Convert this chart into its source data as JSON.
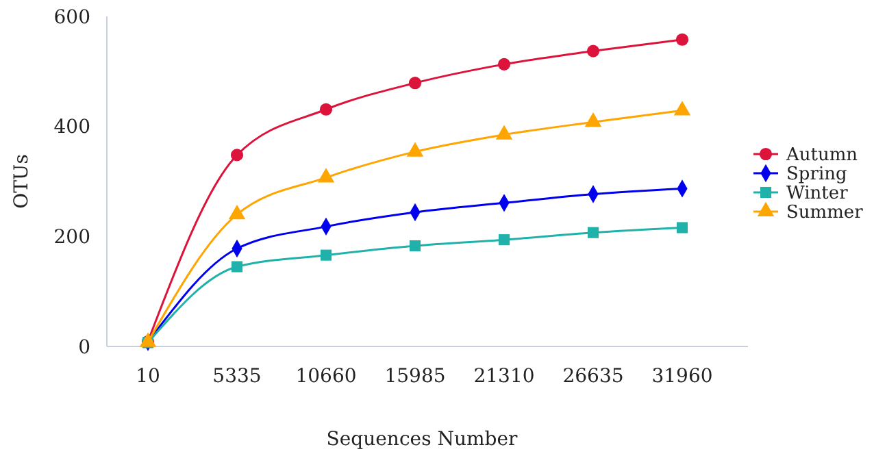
{
  "chart_data": {
    "type": "line",
    "xlabel": "Sequences Number",
    "ylabel": "OTUs",
    "categories": [
      "10",
      "5335",
      "10660",
      "15985",
      "21310",
      "26635",
      "31960"
    ],
    "series": [
      {
        "name": "Autumn",
        "color": "#dc143c",
        "marker": "circle",
        "values": [
          9,
          348,
          431,
          479,
          513,
          537,
          558
        ]
      },
      {
        "name": "Spring",
        "color": "#0000ee",
        "marker": "diamond",
        "values": [
          8,
          178,
          218,
          244,
          261,
          277,
          287
        ]
      },
      {
        "name": "Winter",
        "color": "#20b2aa",
        "marker": "square",
        "values": [
          7,
          145,
          166,
          183,
          194,
          207,
          216
        ]
      },
      {
        "name": "Summer",
        "color": "#ffa500",
        "marker": "triangle",
        "values": [
          8,
          240,
          307,
          354,
          385,
          408,
          429
        ]
      }
    ],
    "ylim": [
      0,
      600
    ],
    "yticks": [
      0,
      200,
      400,
      600
    ],
    "grid": false,
    "legend": "right"
  }
}
